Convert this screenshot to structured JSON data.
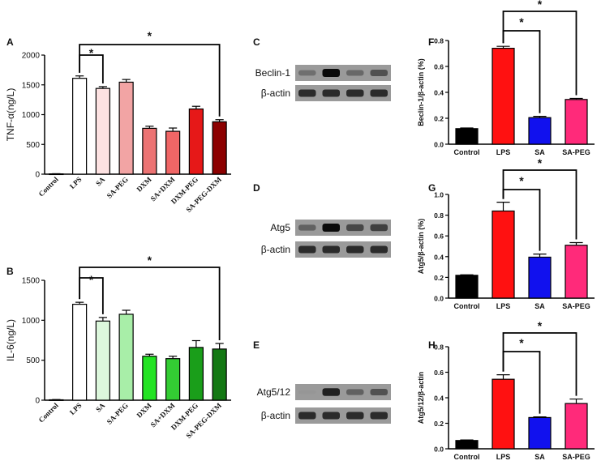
{
  "chart_data": [
    {
      "panel": "A",
      "type": "bar",
      "title": "",
      "ylabel": "TNF-α(ng/L)",
      "ylim": [
        0,
        2000
      ],
      "yticks": [
        "0",
        "500",
        "1000",
        "1500",
        "2000"
      ],
      "categories": [
        "Control",
        "LPS",
        "SA",
        "SA-PEG",
        "DXM",
        "SA+DXM",
        "DXM-PEG",
        "SA-PEG-DXM"
      ],
      "values": [
        5,
        1610,
        1440,
        1545,
        770,
        720,
        1095,
        880
      ],
      "errors": [
        3,
        40,
        30,
        45,
        35,
        55,
        45,
        35
      ],
      "colors": [
        "#ffffff",
        "#ffffff",
        "#fde2e2",
        "#f2a4a4",
        "#ec7373",
        "#f06666",
        "#e61818",
        "#8c0000"
      ],
      "annotations": [
        {
          "from": "LPS",
          "to": "SA",
          "label": "*"
        },
        {
          "from": "LPS",
          "to": "SA-PEG-DXM",
          "label": "*"
        }
      ]
    },
    {
      "panel": "B",
      "type": "bar",
      "ylabel": "IL-6(ng/L)",
      "ylim": [
        0,
        1500
      ],
      "yticks": [
        "0",
        "500",
        "1000",
        "1500"
      ],
      "categories": [
        "Control",
        "LPS",
        "SA",
        "SA-PEG",
        "DXM",
        "SA+DXM",
        "DXM-PEG",
        "SA-PEG-DXM"
      ],
      "values": [
        5,
        1200,
        990,
        1075,
        550,
        520,
        660,
        640
      ],
      "errors": [
        3,
        25,
        45,
        50,
        25,
        30,
        85,
        70
      ],
      "colors": [
        "#ffffff",
        "#ffffff",
        "#dcf7dc",
        "#a8eea8",
        "#23e323",
        "#33cc33",
        "#1a9e1a",
        "#137813"
      ],
      "annotations": [
        {
          "from": "LPS",
          "to": "SA",
          "label": "*"
        },
        {
          "from": "LPS",
          "to": "SA-PEG-DXM",
          "label": "*"
        }
      ]
    },
    {
      "panel": "F",
      "type": "bar",
      "ylabel": "Beclin-1/β-actin (%)",
      "ylim": [
        0,
        0.8
      ],
      "yticks": [
        "0.0",
        "0.2",
        "0.4",
        "0.6",
        "0.8"
      ],
      "categories": [
        "Control",
        "LPS",
        "SA",
        "SA-PEG"
      ],
      "values": [
        0.12,
        0.74,
        0.205,
        0.345
      ],
      "errors": [
        0.005,
        0.015,
        0.01,
        0.008
      ],
      "colors": [
        "#000000",
        "#ff1111",
        "#1111ee",
        "#ff2a7a"
      ],
      "annotations": [
        {
          "from": "LPS",
          "to": "SA",
          "label": "*"
        },
        {
          "from": "LPS",
          "to": "SA-PEG",
          "label": "*"
        }
      ]
    },
    {
      "panel": "G",
      "type": "bar",
      "ylabel": "Atg5/β-actin (%)",
      "ylim": [
        0,
        1.0
      ],
      "yticks": [
        "0.0",
        "0.2",
        "0.4",
        "0.6",
        "0.8",
        "1.0"
      ],
      "categories": [
        "Control",
        "LPS",
        "SA",
        "SA-PEG"
      ],
      "values": [
        0.22,
        0.84,
        0.395,
        0.51
      ],
      "errors": [
        0.005,
        0.085,
        0.03,
        0.025
      ],
      "colors": [
        "#000000",
        "#ff1111",
        "#1111ee",
        "#ff2a7a"
      ],
      "annotations": [
        {
          "from": "LPS",
          "to": "SA",
          "label": "*"
        },
        {
          "from": "LPS",
          "to": "SA-PEG",
          "label": "*"
        }
      ]
    },
    {
      "panel": "H",
      "type": "bar",
      "ylabel": "Atg5/12/β-actin",
      "ylim": [
        0,
        0.8
      ],
      "yticks": [
        "0.0",
        "0.2",
        "0.4",
        "0.6",
        "0.8"
      ],
      "categories": [
        "Control",
        "LPS",
        "SA",
        "SA-PEG"
      ],
      "values": [
        0.065,
        0.545,
        0.245,
        0.355
      ],
      "errors": [
        0.004,
        0.035,
        0.005,
        0.035
      ],
      "colors": [
        "#000000",
        "#ff1111",
        "#1111ee",
        "#ff2a7a"
      ],
      "annotations": [
        {
          "from": "LPS",
          "to": "SA",
          "label": "*"
        },
        {
          "from": "LPS",
          "to": "SA-PEG",
          "label": "*"
        }
      ]
    }
  ],
  "blots": [
    {
      "panel": "C",
      "rows": [
        {
          "label": "Beclin-1",
          "intensity": [
            0.45,
            1.0,
            0.5,
            0.65
          ]
        },
        {
          "label": "β-actin",
          "intensity": [
            0.85,
            0.85,
            0.85,
            0.85
          ]
        }
      ]
    },
    {
      "panel": "D",
      "rows": [
        {
          "label": "Atg5",
          "intensity": [
            0.55,
            1.0,
            0.7,
            0.75
          ]
        },
        {
          "label": "β-actin",
          "intensity": [
            0.85,
            0.85,
            0.85,
            0.85
          ]
        }
      ]
    },
    {
      "panel": "E",
      "rows": [
        {
          "label": "Atg5/12",
          "intensity": [
            0.05,
            0.9,
            0.55,
            0.65
          ]
        },
        {
          "label": "β-actin",
          "intensity": [
            0.85,
            0.85,
            0.85,
            0.85
          ]
        }
      ]
    }
  ]
}
